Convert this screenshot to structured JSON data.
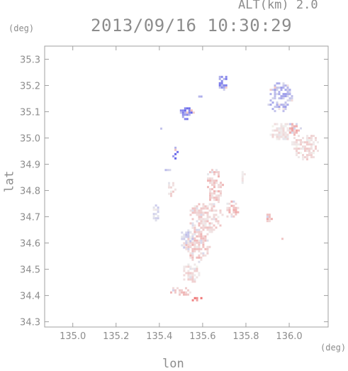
{
  "header": {
    "altitude_label": "ALT(km) 2.0",
    "timestamp": "2013/09/16 10:30:29"
  },
  "chart_data": {
    "type": "heatmap",
    "title": "2013/09/16 10:30:29",
    "subtitle": "ALT(km) 2.0",
    "xlabel": "lon",
    "ylabel": "lat",
    "x_unit": "(deg)",
    "y_unit": "(deg)",
    "xlim": [
      134.87,
      136.18
    ],
    "ylim": [
      34.28,
      35.35
    ],
    "xticks": [
      135.0,
      135.2,
      135.4,
      135.6,
      135.8,
      136.0
    ],
    "xtick_labels": [
      "135.0",
      "135.2",
      "135.4",
      "135.6",
      "135.8",
      "136.0"
    ],
    "yticks": [
      34.3,
      34.4,
      34.5,
      34.6,
      34.7,
      34.8,
      34.9,
      35.0,
      35.1,
      35.2,
      35.3
    ],
    "ytick_labels": [
      "34.3",
      "34.4",
      "34.5",
      "34.6",
      "34.7",
      "34.8",
      "34.9",
      "35.0",
      "35.1",
      "35.2",
      "35.3"
    ],
    "grid": false,
    "colors": {
      "negative": "#6a6ae6",
      "positive": "#f07070",
      "neutral": "#ffffff"
    },
    "clusters": [
      {
        "lon": 135.69,
        "lat": 35.21,
        "rx": 0.025,
        "ry": 0.035,
        "value": -0.65
      },
      {
        "lon": 135.58,
        "lat": 35.16,
        "rx": 0.01,
        "ry": 0.01,
        "value": -0.5
      },
      {
        "lon": 135.52,
        "lat": 35.1,
        "rx": 0.035,
        "ry": 0.025,
        "value": -0.7
      },
      {
        "lon": 135.47,
        "lat": 34.95,
        "rx": 0.02,
        "ry": 0.025,
        "value": -0.8
      },
      {
        "lon": 135.4,
        "lat": 35.04,
        "rx": 0.006,
        "ry": 0.008,
        "value": -0.5
      },
      {
        "lon": 135.95,
        "lat": 35.16,
        "rx": 0.06,
        "ry": 0.06,
        "value": -0.45
      },
      {
        "lon": 135.96,
        "lat": 35.03,
        "rx": 0.06,
        "ry": 0.035,
        "value": 0.2
      },
      {
        "lon": 136.07,
        "lat": 34.97,
        "rx": 0.07,
        "ry": 0.05,
        "value": 0.25
      },
      {
        "lon": 136.02,
        "lat": 35.04,
        "rx": 0.03,
        "ry": 0.025,
        "value": 0.45
      },
      {
        "lon": 135.43,
        "lat": 34.88,
        "rx": 0.015,
        "ry": 0.01,
        "value": -0.35
      },
      {
        "lon": 135.65,
        "lat": 34.82,
        "rx": 0.04,
        "ry": 0.07,
        "value": 0.35
      },
      {
        "lon": 135.73,
        "lat": 34.73,
        "rx": 0.03,
        "ry": 0.04,
        "value": 0.4
      },
      {
        "lon": 135.61,
        "lat": 34.7,
        "rx": 0.08,
        "ry": 0.06,
        "value": 0.3
      },
      {
        "lon": 135.57,
        "lat": 34.6,
        "rx": 0.06,
        "ry": 0.07,
        "value": 0.35
      },
      {
        "lon": 135.52,
        "lat": 34.62,
        "rx": 0.03,
        "ry": 0.04,
        "value": -0.3
      },
      {
        "lon": 135.38,
        "lat": 34.72,
        "rx": 0.02,
        "ry": 0.035,
        "value": -0.25
      },
      {
        "lon": 135.54,
        "lat": 34.49,
        "rx": 0.04,
        "ry": 0.04,
        "value": 0.25
      },
      {
        "lon": 135.49,
        "lat": 34.42,
        "rx": 0.05,
        "ry": 0.02,
        "value": 0.35
      },
      {
        "lon": 135.57,
        "lat": 34.39,
        "rx": 0.03,
        "ry": 0.012,
        "value": 0.7
      },
      {
        "lon": 135.45,
        "lat": 34.81,
        "rx": 0.02,
        "ry": 0.03,
        "value": 0.25
      },
      {
        "lon": 135.9,
        "lat": 34.7,
        "rx": 0.015,
        "ry": 0.02,
        "value": 0.45
      },
      {
        "lon": 135.78,
        "lat": 34.86,
        "rx": 0.01,
        "ry": 0.03,
        "value": 0.2
      },
      {
        "lon": 135.96,
        "lat": 34.62,
        "rx": 0.006,
        "ry": 0.008,
        "value": 0.3
      },
      {
        "lon": 135.89,
        "lat": 34.74,
        "rx": 0.006,
        "ry": 0.006,
        "value": -0.3
      }
    ]
  }
}
